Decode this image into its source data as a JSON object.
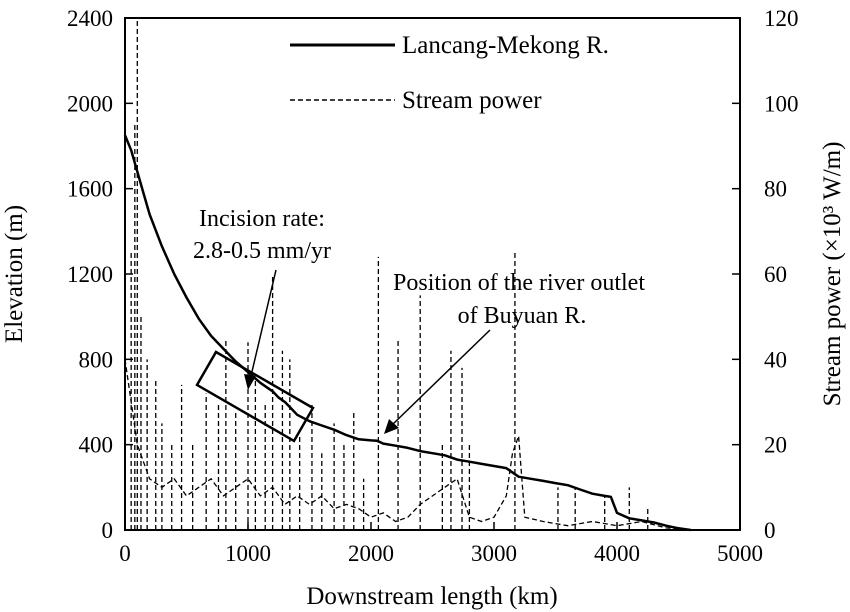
{
  "chart_data": {
    "type": "line",
    "title": "",
    "xlabel": "Downstream length (km)",
    "ylabel": "Elevation (m)",
    "y2label": "Stream power (×10³ W/m)",
    "xlim": [
      0,
      5000
    ],
    "ylim": [
      0,
      2400
    ],
    "y2lim": [
      0,
      120
    ],
    "x_ticks": [
      "0",
      "1000",
      "2000",
      "3000",
      "4000",
      "5000"
    ],
    "y_ticks": [
      "0",
      "400",
      "800",
      "1200",
      "1600",
      "2000",
      "2400"
    ],
    "y2_ticks": [
      "0",
      "20",
      "40",
      "60",
      "80",
      "100",
      "120"
    ],
    "grid": false,
    "legend_position": "top-right",
    "series": [
      {
        "name": "Lancang-Mekong R.",
        "axis": "left",
        "style": "solid",
        "x": [
          0,
          50,
          100,
          150,
          200,
          300,
          400,
          500,
          600,
          700,
          800,
          900,
          1000,
          1100,
          1200,
          1250,
          1300,
          1350,
          1400,
          1500,
          1600,
          1700,
          1800,
          1900,
          2000,
          2050,
          2100,
          2200,
          2300,
          2400,
          2500,
          2600,
          2700,
          2800,
          2900,
          3000,
          3100,
          3200,
          3300,
          3400,
          3500,
          3600,
          3700,
          3800,
          3900,
          3950,
          4000,
          4100,
          4200,
          4300,
          4400,
          4500,
          4600
        ],
        "y": [
          1850,
          1780,
          1680,
          1580,
          1480,
          1330,
          1200,
          1090,
          990,
          910,
          850,
          790,
          740,
          690,
          650,
          620,
          600,
          570,
          540,
          510,
          490,
          470,
          445,
          425,
          420,
          418,
          405,
          395,
          385,
          370,
          360,
          350,
          330,
          320,
          310,
          300,
          290,
          250,
          240,
          230,
          220,
          210,
          190,
          170,
          160,
          155,
          80,
          55,
          45,
          35,
          20,
          8,
          0
        ]
      },
      {
        "name": "Stream power",
        "axis": "right",
        "style": "dashed",
        "spikes": [
          [
            50,
            65
          ],
          [
            80,
            95
          ],
          [
            100,
            120
          ],
          [
            130,
            50
          ],
          [
            180,
            40
          ],
          [
            250,
            35
          ],
          [
            300,
            25
          ],
          [
            380,
            20
          ],
          [
            460,
            34
          ],
          [
            550,
            20
          ],
          [
            660,
            32
          ],
          [
            760,
            30
          ],
          [
            820,
            45
          ],
          [
            900,
            28
          ],
          [
            1000,
            44
          ],
          [
            1060,
            35
          ],
          [
            1140,
            30
          ],
          [
            1200,
            60
          ],
          [
            1280,
            42
          ],
          [
            1340,
            40
          ],
          [
            1420,
            22
          ],
          [
            1520,
            30
          ],
          [
            1600,
            18
          ],
          [
            1700,
            25
          ],
          [
            1780,
            20
          ],
          [
            1860,
            28
          ],
          [
            1940,
            12
          ],
          [
            2060,
            64
          ],
          [
            2220,
            45
          ],
          [
            2400,
            55
          ],
          [
            2580,
            20
          ],
          [
            2650,
            42
          ],
          [
            2740,
            38
          ],
          [
            2800,
            20
          ],
          [
            3170,
            65
          ],
          [
            3520,
            10
          ],
          [
            3660,
            10
          ],
          [
            3900,
            8
          ],
          [
            4100,
            10
          ],
          [
            4250,
            5
          ]
        ],
        "baseline": [
          [
            0,
            40
          ],
          [
            100,
            20
          ],
          [
            200,
            12
          ],
          [
            300,
            10
          ],
          [
            400,
            12
          ],
          [
            500,
            8
          ],
          [
            600,
            10
          ],
          [
            700,
            12
          ],
          [
            800,
            8
          ],
          [
            900,
            10
          ],
          [
            1000,
            12
          ],
          [
            1100,
            8
          ],
          [
            1200,
            10
          ],
          [
            1300,
            6
          ],
          [
            1400,
            8
          ],
          [
            1500,
            6
          ],
          [
            1600,
            8
          ],
          [
            1700,
            5
          ],
          [
            1800,
            6
          ],
          [
            1900,
            5
          ],
          [
            2000,
            3
          ],
          [
            2100,
            4
          ],
          [
            2200,
            2
          ],
          [
            2300,
            3
          ],
          [
            2400,
            6
          ],
          [
            2500,
            8
          ],
          [
            2600,
            10
          ],
          [
            2700,
            12
          ],
          [
            2800,
            3
          ],
          [
            2900,
            2
          ],
          [
            3000,
            3
          ],
          [
            3100,
            8
          ],
          [
            3150,
            18
          ],
          [
            3200,
            22
          ],
          [
            3250,
            3
          ],
          [
            3400,
            2
          ],
          [
            3600,
            1
          ],
          [
            3800,
            2
          ],
          [
            4000,
            1
          ],
          [
            4200,
            2
          ],
          [
            4400,
            0.5
          ],
          [
            4600,
            0
          ]
        ]
      }
    ],
    "annotations": [
      {
        "id": "incision",
        "lines": [
          "Incision rate:",
          "2.8-0.5 mm/yr"
        ]
      },
      {
        "id": "outlet",
        "lines": [
          "Position of the river outlet",
          "of Buyuan R."
        ]
      }
    ]
  }
}
